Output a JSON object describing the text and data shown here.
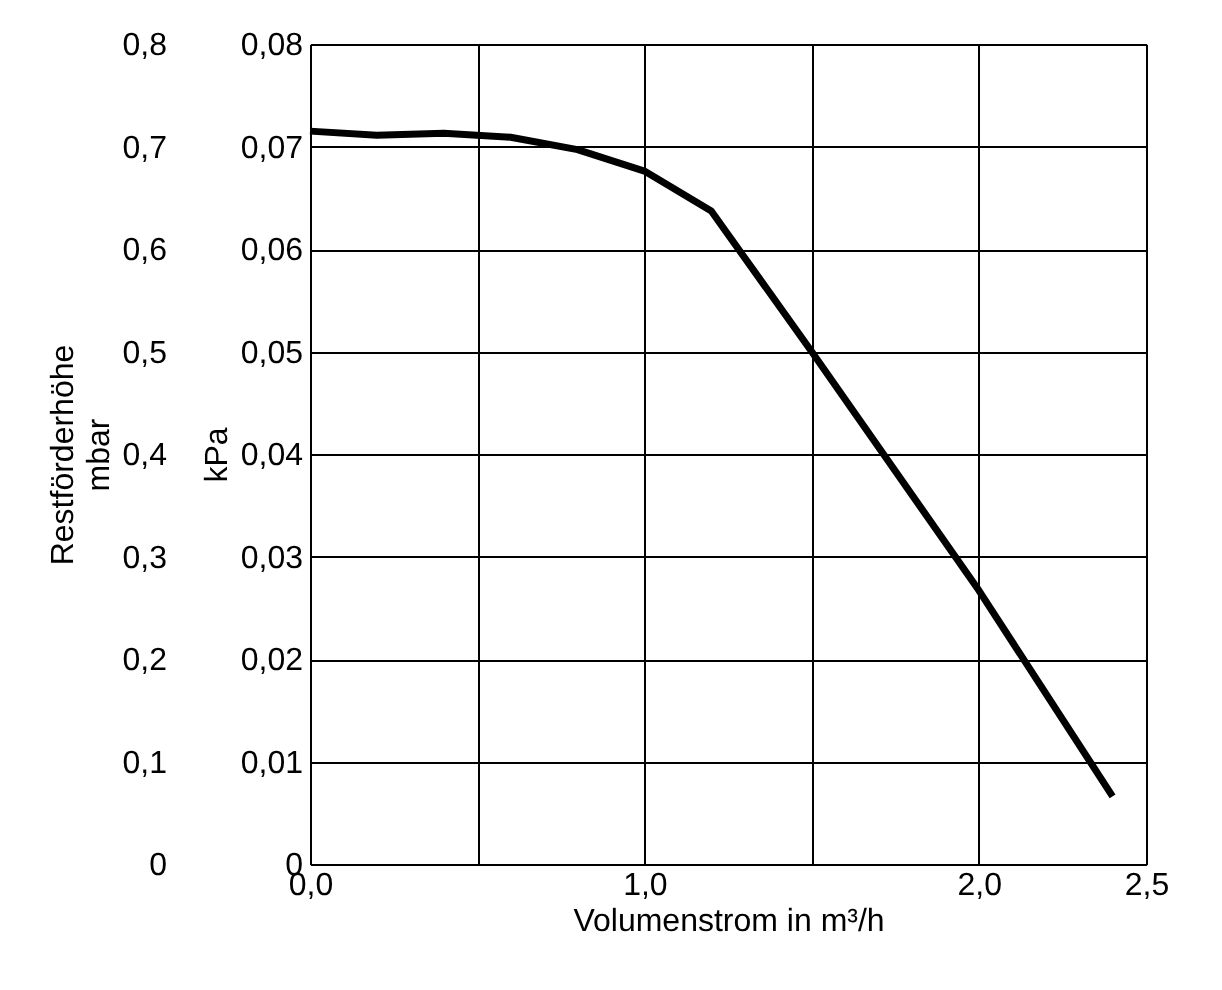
{
  "chart_data": {
    "type": "line",
    "xlabel": "Volumenstrom in m³/h",
    "ylabel": "Restförderhöhe\nmbar",
    "y2label": "kPa",
    "x": [
      0.0,
      0.2,
      0.4,
      0.6,
      0.8,
      1.0,
      1.2,
      1.5,
      2.0,
      2.4
    ],
    "series": [
      {
        "color": "#000000",
        "values": [
          0.715,
          0.711,
          0.713,
          0.709,
          0.697,
          0.676,
          0.637,
          0.5,
          0.267,
          0.066
        ]
      }
    ],
    "xlim": [
      0,
      2.5
    ],
    "xticks": [
      {
        "value": 0,
        "label": "0,0"
      },
      {
        "value": 0.5,
        "label": null
      },
      {
        "value": 1.0,
        "label": "1,0"
      },
      {
        "value": 1.5,
        "label": null
      },
      {
        "value": 2.0,
        "label": "2,0"
      },
      {
        "value": 2.5,
        "label": "2,5"
      }
    ],
    "ylim": [
      0,
      0.8
    ],
    "yticks": [
      {
        "value": 0,
        "label": "0"
      },
      {
        "value": 0.1,
        "label": "0,1"
      },
      {
        "value": 0.2,
        "label": "0,2"
      },
      {
        "value": 0.3,
        "label": "0,3"
      },
      {
        "value": 0.4,
        "label": "0,4"
      },
      {
        "value": 0.5,
        "label": "0,5"
      },
      {
        "value": 0.6,
        "label": "0,6"
      },
      {
        "value": 0.7,
        "label": "0,7"
      },
      {
        "value": 0.8,
        "label": "0,8"
      }
    ],
    "y2lim": [
      0,
      0.08
    ],
    "y2ticks": [
      {
        "value": 0,
        "label": "0"
      },
      {
        "value": 0.01,
        "label": "0,01"
      },
      {
        "value": 0.02,
        "label": "0,02"
      },
      {
        "value": 0.03,
        "label": "0,03"
      },
      {
        "value": 0.04,
        "label": "0,04"
      },
      {
        "value": 0.05,
        "label": "0,05"
      },
      {
        "value": 0.06,
        "label": "0,06"
      },
      {
        "value": 0.07,
        "label": "0,07"
      },
      {
        "value": 0.08,
        "label": "0,08"
      }
    ],
    "grid": true,
    "marker": "none",
    "line_style": "solid"
  }
}
